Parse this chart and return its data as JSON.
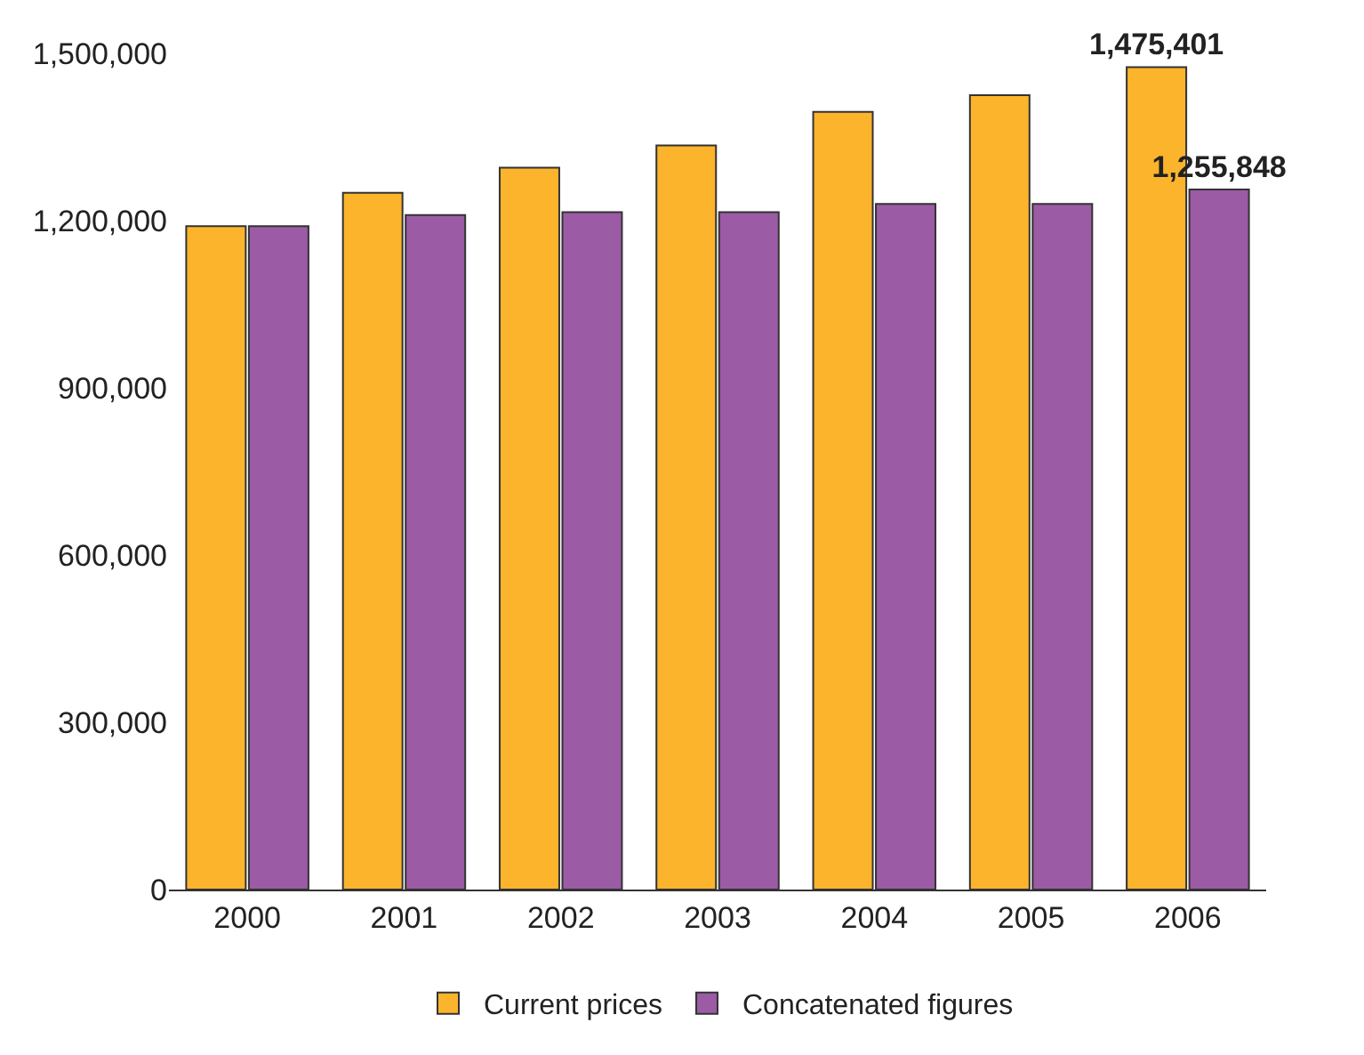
{
  "chart_data": {
    "type": "bar",
    "categories": [
      "2000",
      "2001",
      "2002",
      "2003",
      "2004",
      "2005",
      "2006"
    ],
    "series": [
      {
        "name": "Current prices",
        "color": "#fbb42c",
        "values": [
          1190000,
          1250000,
          1295000,
          1335000,
          1395000,
          1425000,
          1475401
        ],
        "value_labels": [
          null,
          null,
          null,
          null,
          null,
          null,
          "1,475,401"
        ]
      },
      {
        "name": "Concatenated figures",
        "color": "#9b5ba5",
        "values": [
          1190000,
          1210000,
          1215000,
          1215000,
          1230000,
          1230000,
          1255848
        ],
        "value_labels": [
          null,
          null,
          null,
          null,
          null,
          null,
          "1,255,848"
        ]
      }
    ],
    "ylim": [
      0,
      1500000
    ],
    "yticks": [
      {
        "value": 0,
        "label": "0"
      },
      {
        "value": 300000,
        "label": "300,000"
      },
      {
        "value": 600000,
        "label": "600,000"
      },
      {
        "value": 900000,
        "label": "900,000"
      },
      {
        "value": 1200000,
        "label": "1,200,000"
      },
      {
        "value": 1500000,
        "label": "1,500,000"
      }
    ],
    "grid": false,
    "legend": "bottom"
  }
}
